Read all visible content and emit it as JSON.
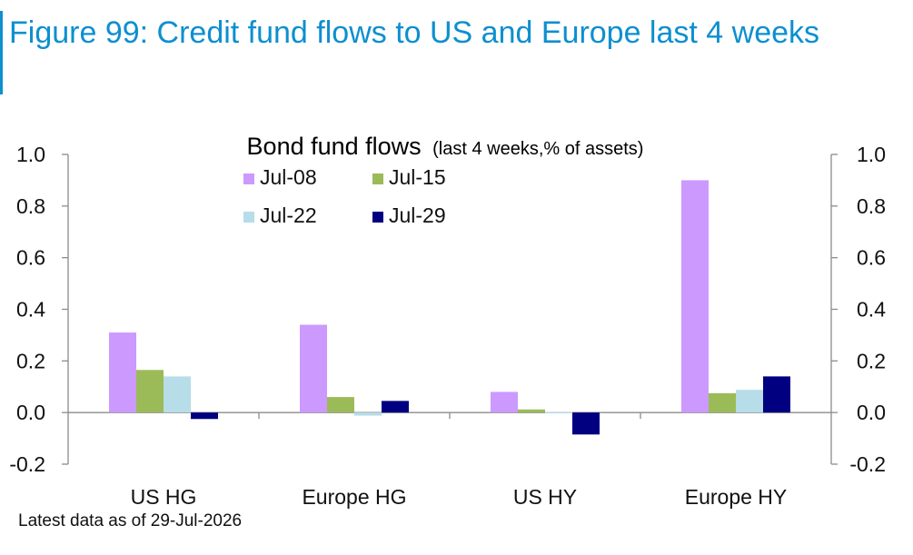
{
  "figure": {
    "title": "Figure 99: Credit fund flows to US and Europe last 4 weeks",
    "footnote": "Latest data as of 29-Jul-2026",
    "accent_color": "#0d8fd0"
  },
  "chart_data": {
    "type": "bar",
    "title_main": "Bond fund flows",
    "title_sub": "(last 4 weeks,% of assets)",
    "categories": [
      "US HG",
      "Europe HG",
      "US HY",
      "Europe HY"
    ],
    "series": [
      {
        "name": "Jul-08",
        "color": "#cc99ff",
        "values": [
          0.31,
          0.34,
          0.08,
          0.9
        ]
      },
      {
        "name": "Jul-15",
        "color": "#9bbb59",
        "values": [
          0.165,
          0.06,
          0.012,
          0.075
        ]
      },
      {
        "name": "Jul-22",
        "color": "#b7dde8",
        "values": [
          0.14,
          -0.012,
          0.002,
          0.088
        ]
      },
      {
        "name": "Jul-29",
        "color": "#000080",
        "values": [
          -0.025,
          0.045,
          -0.085,
          0.14
        ]
      }
    ],
    "ylim": [
      -0.2,
      1.0
    ],
    "yticks": [
      "-0.2",
      "0.0",
      "0.2",
      "0.4",
      "0.6",
      "0.8",
      "1.0"
    ],
    "ytick_values": [
      -0.2,
      0.0,
      0.2,
      0.4,
      0.6,
      0.8,
      1.0
    ],
    "secondary_axis": true,
    "grid": false,
    "legend_position": "top-center"
  }
}
